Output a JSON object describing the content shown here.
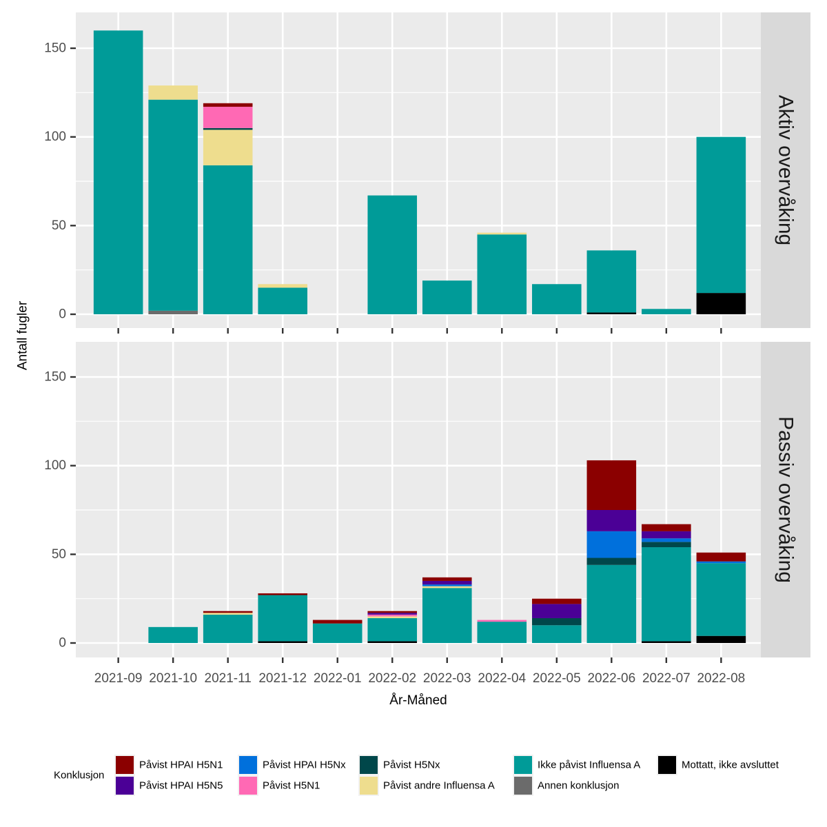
{
  "chart_data": {
    "type": "bar",
    "stacked": true,
    "xlabel": "År-Måned",
    "ylabel": "Antall fugler",
    "ylim": [
      0,
      167
    ],
    "yticks": [
      0,
      50,
      100,
      150
    ],
    "grid": true,
    "legend_position": "bottom",
    "legend_title": "Konklusjon",
    "categories": [
      "2021-09",
      "2021-10",
      "2021-11",
      "2021-12",
      "2022-01",
      "2022-02",
      "2022-03",
      "2022-04",
      "2022-05",
      "2022-06",
      "2022-07",
      "2022-08"
    ],
    "stack_order": [
      "Mottatt, ikke avsluttet",
      "Annen konklusjon",
      "Ikke påvist Influensa A",
      "Påvist andre Influensa A",
      "Påvist H5Nx",
      "Påvist H5N1",
      "Påvist HPAI H5Nx",
      "Påvist HPAI H5N5",
      "Påvist HPAI H5N1"
    ],
    "legend": [
      {
        "name": "Påvist HPAI H5N1",
        "color": "#8B0000"
      },
      {
        "name": "Påvist HPAI H5N5",
        "color": "#4B0096"
      },
      {
        "name": "Påvist HPAI H5Nx",
        "color": "#0070DC"
      },
      {
        "name": "Påvist H5N1",
        "color": "#FF69B4"
      },
      {
        "name": "Påvist H5Nx",
        "color": "#00474A"
      },
      {
        "name": "Påvist andre Influensa A",
        "color": "#EEDD8E"
      },
      {
        "name": "Ikke påvist Influensa A",
        "color": "#009B98"
      },
      {
        "name": "Annen konklusjon",
        "color": "#6B6B6B"
      },
      {
        "name": "Mottatt, ikke avsluttet",
        "color": "#000000"
      }
    ],
    "panels": [
      {
        "label": "Aktiv overvåking",
        "series": [
          {
            "name": "Mottatt, ikke avsluttet",
            "values": [
              0,
              0,
              0,
              0,
              0,
              0,
              0,
              0,
              0,
              1,
              0,
              12
            ]
          },
          {
            "name": "Annen konklusjon",
            "values": [
              0,
              2,
              0,
              0,
              0,
              0,
              0,
              0,
              0,
              0,
              0,
              0
            ]
          },
          {
            "name": "Ikke påvist Influensa A",
            "values": [
              160,
              119,
              84,
              15,
              0,
              67,
              19,
              45,
              17,
              35,
              3,
              88
            ]
          },
          {
            "name": "Påvist andre Influensa A",
            "values": [
              0,
              8,
              20,
              2,
              0,
              0,
              0,
              1,
              0,
              0,
              0,
              0
            ]
          },
          {
            "name": "Påvist H5Nx",
            "values": [
              0,
              0,
              1,
              0,
              0,
              0,
              0,
              0,
              0,
              0,
              0,
              0
            ]
          },
          {
            "name": "Påvist H5N1",
            "values": [
              0,
              0,
              12,
              0,
              0,
              0,
              0,
              0,
              0,
              0,
              0,
              0
            ]
          },
          {
            "name": "Påvist HPAI H5Nx",
            "values": [
              0,
              0,
              0,
              0,
              0,
              0,
              0,
              0,
              0,
              0,
              0,
              0
            ]
          },
          {
            "name": "Påvist HPAI H5N5",
            "values": [
              0,
              0,
              0,
              0,
              0,
              0,
              0,
              0,
              0,
              0,
              0,
              0
            ]
          },
          {
            "name": "Påvist HPAI H5N1",
            "values": [
              0,
              0,
              2,
              0,
              0,
              0,
              0,
              0,
              0,
              0,
              0,
              0
            ]
          }
        ]
      },
      {
        "label": "Passiv overvåking",
        "series": [
          {
            "name": "Mottatt, ikke avsluttet",
            "values": [
              0,
              0,
              0,
              1,
              0,
              1,
              0,
              0,
              0,
              0,
              1,
              4
            ]
          },
          {
            "name": "Annen konklusjon",
            "values": [
              0,
              0,
              0,
              0,
              0,
              0,
              0,
              0,
              0,
              0,
              0,
              0
            ]
          },
          {
            "name": "Ikke påvist Influensa A",
            "values": [
              0,
              9,
              16,
              26,
              11,
              13,
              31,
              12,
              10,
              44,
              53,
              41
            ]
          },
          {
            "name": "Påvist andre Influensa A",
            "values": [
              0,
              0,
              1,
              0,
              0,
              1,
              1,
              0,
              0,
              0,
              0,
              0
            ]
          },
          {
            "name": "Påvist H5Nx",
            "values": [
              0,
              0,
              0,
              0,
              0,
              0,
              0,
              0,
              4,
              4,
              3,
              0
            ]
          },
          {
            "name": "Påvist H5N1",
            "values": [
              0,
              0,
              0,
              0,
              0,
              1,
              0,
              1,
              0,
              0,
              0,
              0
            ]
          },
          {
            "name": "Påvist HPAI H5Nx",
            "values": [
              0,
              0,
              0,
              0,
              0,
              0,
              1,
              0,
              0,
              15,
              2,
              1
            ]
          },
          {
            "name": "Påvist HPAI H5N5",
            "values": [
              0,
              0,
              0,
              0,
              0,
              1,
              2,
              0,
              8,
              12,
              4,
              0
            ]
          },
          {
            "name": "Påvist HPAI H5N1",
            "values": [
              0,
              0,
              1,
              1,
              2,
              1,
              2,
              0,
              3,
              28,
              4,
              5
            ]
          }
        ]
      }
    ]
  }
}
